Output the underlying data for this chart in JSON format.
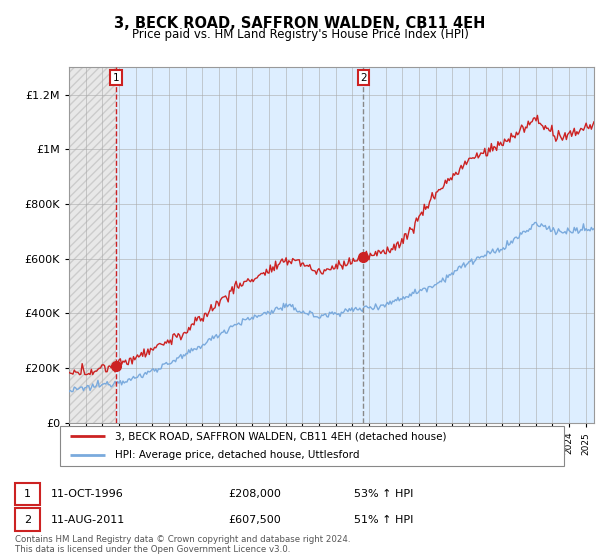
{
  "title": "3, BECK ROAD, SAFFRON WALDEN, CB11 4EH",
  "subtitle": "Price paid vs. HM Land Registry's House Price Index (HPI)",
  "legend_line1": "3, BECK ROAD, SAFFRON WALDEN, CB11 4EH (detached house)",
  "legend_line2": "HPI: Average price, detached house, Uttlesford",
  "footer1": "Contains HM Land Registry data © Crown copyright and database right 2024.",
  "footer2": "This data is licensed under the Open Government Licence v3.0.",
  "price_color": "#cc2222",
  "hpi_color": "#7aaadd",
  "ylim": [
    0,
    1300000
  ],
  "xlim_start": 1994.0,
  "xlim_end": 2025.5,
  "sale1_x": 1996.833,
  "sale1_y": 208000,
  "sale2_x": 2011.667,
  "sale2_y": 607500,
  "ann1_date": "11-OCT-1996",
  "ann1_price": "£208,000",
  "ann1_hpi": "53% ↑ HPI",
  "ann2_date": "11-AUG-2011",
  "ann2_price": "£607,500",
  "ann2_hpi": "51% ↑ HPI"
}
